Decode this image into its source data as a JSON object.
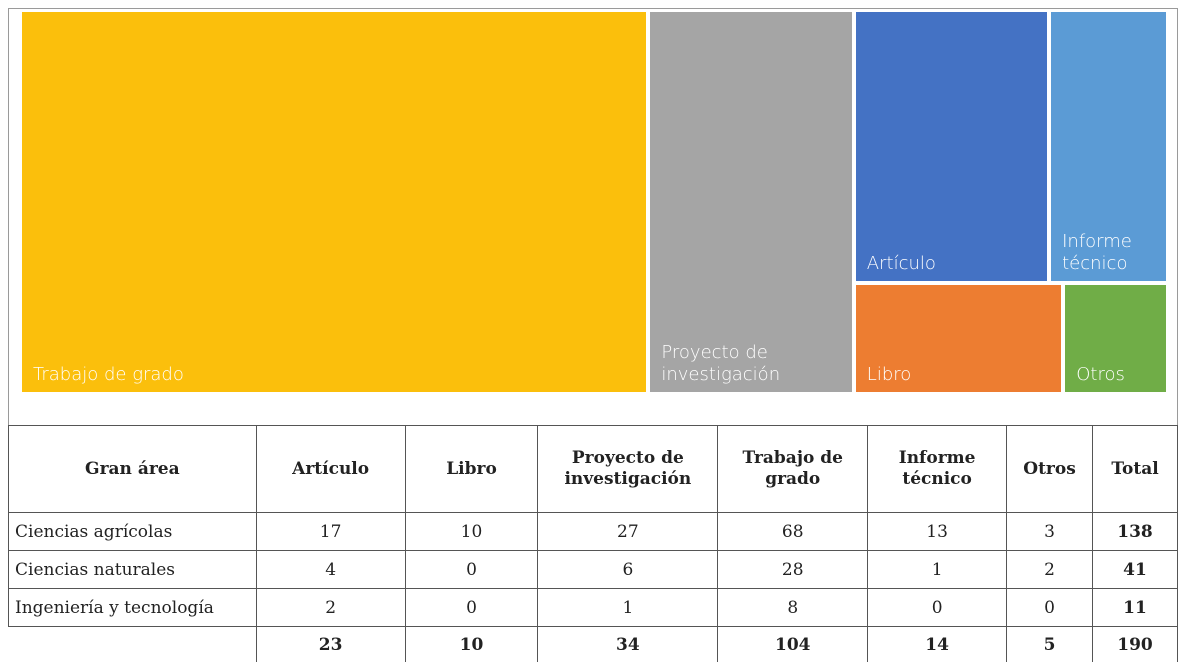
{
  "chart_data": {
    "type": "treemap",
    "categories": [
      "Trabajo de grado",
      "Proyecto de investigación",
      "Artículo",
      "Informe técnico",
      "Libro",
      "Otros"
    ],
    "values": [
      104,
      34,
      23,
      14,
      10,
      5
    ],
    "colors": [
      "#fbbf0c",
      "#a5a5a5",
      "#4472c4",
      "#5b9bd5",
      "#ed7d31",
      "#70ad47"
    ]
  },
  "table": {
    "header": [
      "Gran área",
      "Artículo",
      "Libro",
      "Proyecto de investigación",
      "Trabajo de grado",
      "Informe técnico",
      "Otros",
      "Total"
    ],
    "rows": [
      [
        "Ciencias agrícolas",
        17,
        10,
        27,
        68,
        13,
        3,
        138
      ],
      [
        "Ciencias naturales",
        4,
        0,
        6,
        28,
        1,
        2,
        41
      ],
      [
        "Ingeniería y tecnología",
        2,
        0,
        1,
        8,
        0,
        0,
        11
      ]
    ],
    "totals": [
      23,
      10,
      34,
      104,
      14,
      5,
      190
    ]
  }
}
